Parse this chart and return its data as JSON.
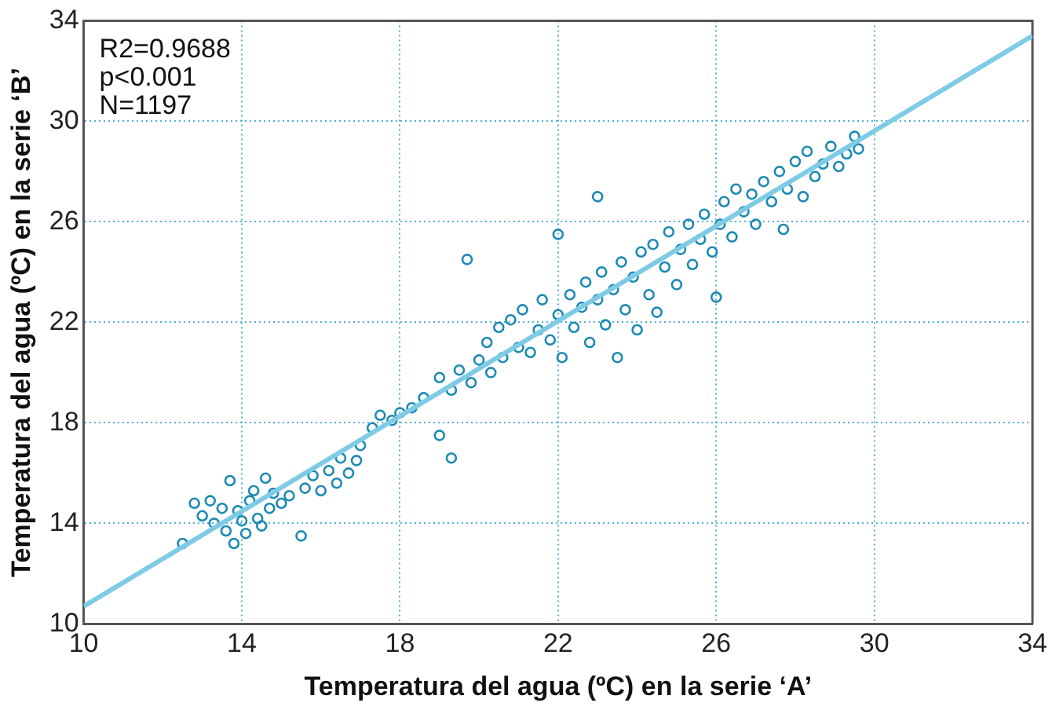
{
  "chart_data": {
    "type": "scatter",
    "xlabel": "Temperatura del agua (ºC) en la serie ‘A’",
    "ylabel": "Temperatura del agua (ºC) en la serie ‘B’",
    "annotations": [
      "R2=0.9688",
      "p<0.001",
      "N=1197"
    ],
    "xlim": [
      10,
      34
    ],
    "xticks": [
      10,
      14,
      18,
      22,
      26,
      30,
      34
    ],
    "ylim": [
      10,
      34
    ],
    "yticks": [
      10,
      14,
      18,
      22,
      26,
      30,
      34
    ],
    "grid": true,
    "legend": false,
    "marker": "circle",
    "series": [
      {
        "color": "#1b8ab3",
        "x": [
          12.5,
          12.8,
          13.0,
          13.2,
          13.3,
          13.5,
          13.6,
          13.7,
          13.8,
          13.9,
          14.0,
          14.1,
          14.2,
          14.3,
          14.4,
          14.5,
          14.6,
          14.7,
          14.8,
          15.0,
          15.2,
          15.5,
          15.6,
          15.8,
          16.0,
          16.2,
          16.4,
          16.5,
          16.7,
          16.9,
          17.0,
          17.3,
          17.5,
          17.8,
          18.0,
          18.3,
          18.6,
          19.0,
          19.3,
          19.0,
          19.3,
          19.5,
          19.7,
          19.8,
          20.0,
          20.2,
          20.3,
          20.5,
          20.6,
          20.8,
          21.0,
          21.1,
          21.3,
          21.5,
          21.6,
          21.8,
          22.0,
          22.0,
          22.1,
          22.3,
          22.4,
          22.6,
          22.7,
          22.8,
          23.0,
          23.0,
          23.1,
          23.2,
          23.4,
          23.5,
          23.6,
          23.7,
          23.9,
          24.0,
          24.1,
          24.3,
          24.4,
          24.5,
          24.7,
          24.8,
          25.0,
          25.1,
          25.3,
          25.4,
          25.6,
          25.7,
          25.9,
          26.0,
          26.1,
          26.2,
          26.4,
          26.5,
          26.7,
          26.9,
          27.0,
          27.2,
          27.4,
          27.6,
          27.7,
          27.8,
          28.0,
          28.2,
          28.3,
          28.5,
          28.7,
          28.9,
          29.1,
          29.3,
          29.5,
          29.6
        ],
        "values": [
          13.2,
          14.8,
          14.3,
          14.9,
          14.0,
          14.6,
          13.7,
          15.7,
          13.2,
          14.5,
          14.1,
          13.6,
          14.9,
          15.3,
          14.2,
          13.9,
          15.8,
          14.6,
          15.2,
          14.8,
          15.1,
          13.5,
          15.4,
          15.9,
          15.3,
          16.1,
          15.6,
          16.6,
          16.0,
          16.5,
          17.1,
          17.8,
          18.3,
          18.1,
          18.4,
          18.6,
          19.0,
          17.5,
          16.6,
          19.8,
          19.3,
          20.1,
          24.5,
          19.6,
          20.5,
          21.2,
          20.0,
          21.8,
          20.6,
          22.1,
          21.0,
          22.5,
          20.8,
          21.7,
          22.9,
          21.3,
          25.5,
          22.3,
          20.6,
          23.1,
          21.8,
          22.6,
          23.6,
          21.2,
          27.0,
          22.9,
          24.0,
          21.9,
          23.3,
          20.6,
          24.4,
          22.5,
          23.8,
          21.7,
          24.8,
          23.1,
          25.1,
          22.4,
          24.2,
          25.6,
          23.5,
          24.9,
          25.9,
          24.3,
          25.3,
          26.3,
          24.8,
          23.0,
          25.9,
          26.8,
          25.4,
          27.3,
          26.4,
          27.1,
          25.9,
          27.6,
          26.8,
          28.0,
          25.7,
          27.3,
          28.4,
          27.0,
          28.8,
          27.8,
          28.3,
          29.0,
          28.2,
          28.7,
          29.4,
          28.9
        ]
      },
      {
        "type": "line",
        "color": "#7fcbe6",
        "marker": "none",
        "x": [
          10,
          34
        ],
        "values": [
          10.7,
          33.4
        ]
      }
    ]
  }
}
